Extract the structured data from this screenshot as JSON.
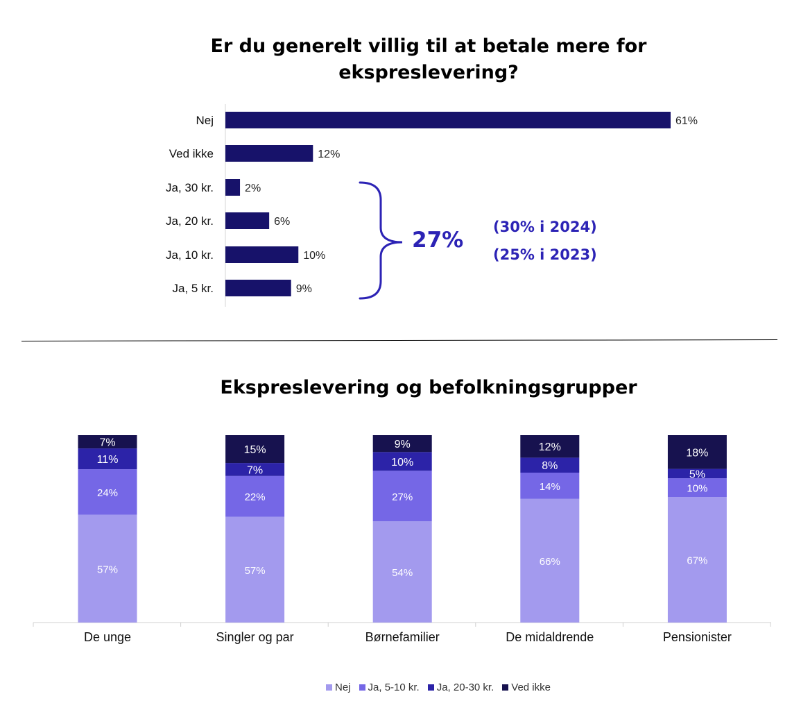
{
  "chart_data": [
    {
      "type": "bar",
      "orientation": "horizontal",
      "title": "Er du generelt villig til at betale mere for ekspreslevering?",
      "categories": [
        "Nej",
        "Ved ikke",
        "Ja, 30 kr.",
        "Ja, 20 kr.",
        "Ja, 10 kr.",
        "Ja, 5 kr."
      ],
      "values": [
        61,
        12,
        2,
        6,
        10,
        9
      ],
      "value_labels": [
        "61%",
        "12%",
        "2%",
        "6%",
        "10%",
        "9%"
      ],
      "color": "#17126a",
      "annotation": {
        "total": "27%",
        "comparisons": [
          "(30% i 2024)",
          "(25% i 2023)"
        ],
        "color": "#2c23b5"
      }
    },
    {
      "type": "bar",
      "stacked": true,
      "title": "Ekspreslevering og befolkningsgrupper",
      "categories": [
        "De unge",
        "Singler og par",
        "Børnefamilier",
        "De midaldrende",
        "Pensionister"
      ],
      "series": [
        {
          "name": "Nej",
          "color": "#a39aee",
          "values": [
            57,
            57,
            54,
            66,
            67
          ]
        },
        {
          "name": "Ja, 5-10 kr.",
          "color": "#7567e6",
          "values": [
            24,
            22,
            27,
            14,
            10
          ]
        },
        {
          "name": "Ja, 20-30 kr.",
          "color": "#2c23a8",
          "values": [
            11,
            7,
            10,
            8,
            5
          ]
        },
        {
          "name": "Ved ikke",
          "color": "#17124f",
          "values": [
            7,
            15,
            9,
            12,
            18
          ]
        }
      ],
      "legend_position": "bottom"
    }
  ]
}
